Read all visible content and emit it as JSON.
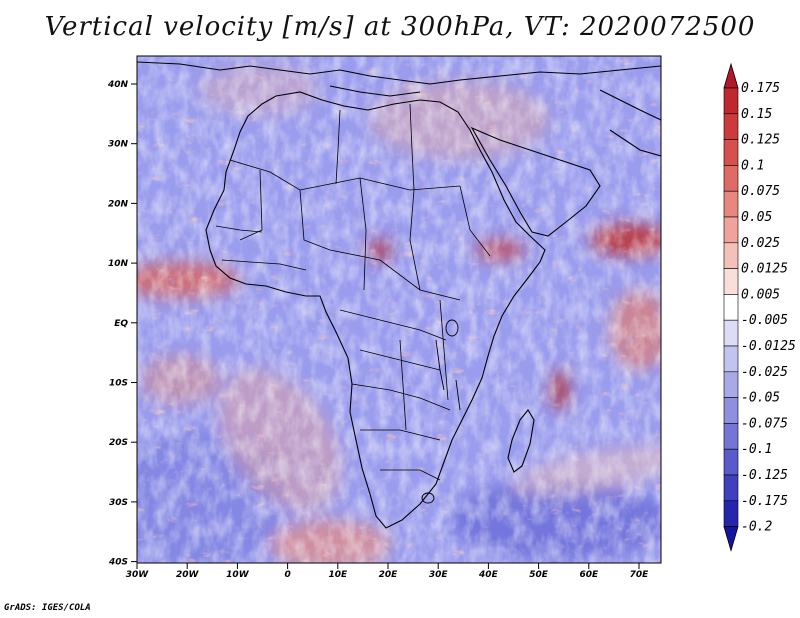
{
  "title": "Vertical velocity [m/s] at 300hPa, VT: 2020072500",
  "credit": "GrADS: IGES/COLA",
  "map": {
    "lat_labels": [
      "40N",
      "30N",
      "20N",
      "10N",
      "EQ",
      "10S",
      "20S",
      "30S",
      "40S"
    ],
    "lon_labels": [
      "30W",
      "20W",
      "10W",
      "0",
      "10E",
      "20E",
      "30E",
      "40E",
      "50E",
      "60E",
      "70E"
    ],
    "lat_range": [
      -40,
      45
    ],
    "lon_range": [
      -30,
      75
    ]
  },
  "colorbar": {
    "levels": [
      "0.175",
      "0.15",
      "0.125",
      "0.1",
      "0.075",
      "0.05",
      "0.025",
      "0.0125",
      "0.005",
      "-0.005",
      "-0.0125",
      "-0.025",
      "-0.05",
      "-0.075",
      "-0.1",
      "-0.125",
      "-0.175",
      "-0.2"
    ],
    "colors": [
      "#b2182b",
      "#c0282f",
      "#cc3a3a",
      "#d65050",
      "#df6a66",
      "#e7877f",
      "#ee a39c",
      "#f4c1ba",
      "#f9ded9",
      "#ffffff",
      "#dcdcf6",
      "#c3c3ef",
      "#a9a9e7",
      "#8f8fdf",
      "#7575d6",
      "#5a5acc",
      "#3f3fc0",
      "#2626ad",
      "#1414a0"
    ],
    "top_color": "#b2182b",
    "bottom_color": "#1414a0"
  },
  "palette": {
    "background": "#9a9cee",
    "land_background": "#a8a9ec",
    "positive": "#e8857a",
    "strong_positive": "#c0282f",
    "negative": "#6f72dc",
    "light": "#eceaf8"
  }
}
